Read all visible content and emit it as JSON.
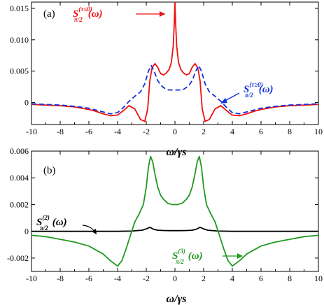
{
  "chart_data": [
    {
      "panel": "(a)",
      "type": "line",
      "xlabel": "ω/γs",
      "xlim": [
        -10,
        10
      ],
      "ylim": [
        -0.0035,
        0.016
      ],
      "xticks": [
        "-10",
        "-8",
        "-6",
        "-4",
        "-2",
        "0",
        "2",
        "4",
        "6",
        "8",
        "10"
      ],
      "yticks": [
        "0",
        "0.005",
        "0.010",
        "0.015"
      ],
      "series": [
        {
          "name": "S_{π/2}^{(τ≤0)}(ω)",
          "color": "#ee1111",
          "dash": "solid",
          "x": [
            -10,
            -9,
            -8,
            -7,
            -6,
            -5.5,
            -5,
            -4.5,
            -4,
            -3.6,
            -3.2,
            -2.8,
            -2.4,
            -2.1,
            -1.9,
            -1.75,
            -1.6,
            -1.4,
            -1.2,
            -1.0,
            -0.8,
            -0.6,
            -0.4,
            -0.25,
            -0.12,
            -0.05,
            0,
            0.05,
            0.12,
            0.25,
            0.4,
            0.6,
            0.8,
            1.0,
            1.2,
            1.4,
            1.6,
            1.75,
            1.9,
            2.1,
            2.4,
            2.8,
            3.2,
            3.6,
            4,
            4.5,
            5,
            5.5,
            6,
            7,
            8,
            9,
            10
          ],
          "y": [
            -0.0003,
            -0.0004,
            -0.0005,
            -0.0007,
            -0.0011,
            -0.0014,
            -0.0018,
            -0.0021,
            -0.002,
            -0.0013,
            -0.0005,
            -0.001,
            -0.0027,
            -0.003,
            -0.001,
            0.0035,
            0.0055,
            0.0062,
            0.0056,
            0.0046,
            0.0044,
            0.0047,
            0.0053,
            0.0064,
            0.009,
            0.0125,
            0.016,
            0.0125,
            0.009,
            0.0064,
            0.0053,
            0.0047,
            0.0044,
            0.0046,
            0.0056,
            0.0062,
            0.0055,
            0.0035,
            -0.001,
            -0.003,
            -0.0027,
            -0.001,
            -0.0005,
            -0.0013,
            -0.002,
            -0.0021,
            -0.0018,
            -0.0014,
            -0.0011,
            -0.0007,
            -0.0005,
            -0.0004,
            -0.0003
          ]
        },
        {
          "name": "S_{π/2}^{(τ≥0)}(ω)",
          "color": "#1133dd",
          "dash": "dashed",
          "x": [
            -10,
            -9,
            -8,
            -7,
            -6,
            -5.5,
            -5,
            -4.5,
            -4,
            -3.6,
            -3.2,
            -2.8,
            -2.4,
            -2.1,
            -1.85,
            -1.65,
            -1.45,
            -1.2,
            -1.0,
            -0.8,
            -0.6,
            -0.4,
            -0.2,
            0,
            0.2,
            0.4,
            0.6,
            0.8,
            1.0,
            1.2,
            1.45,
            1.65,
            1.85,
            2.1,
            2.4,
            2.8,
            3.2,
            3.6,
            4,
            4.5,
            5,
            5.5,
            6,
            7,
            8,
            9,
            10
          ],
          "y": [
            -0.0002,
            -0.0003,
            -0.0004,
            -0.0006,
            -0.0009,
            -0.0012,
            -0.0015,
            -0.0018,
            -0.0016,
            -0.0008,
            0.0002,
            0.001,
            0.0017,
            0.003,
            0.005,
            0.0059,
            0.005,
            0.0035,
            0.0028,
            0.0024,
            0.0021,
            0.002,
            0.002,
            0.002,
            0.002,
            0.002,
            0.0021,
            0.0024,
            0.0028,
            0.0035,
            0.005,
            0.0059,
            0.005,
            0.003,
            0.0017,
            0.001,
            0.0002,
            -0.0008,
            -0.0016,
            -0.0018,
            -0.0015,
            -0.0012,
            -0.0009,
            -0.0006,
            -0.0004,
            -0.0003,
            -0.0002
          ]
        }
      ]
    },
    {
      "panel": "(b)",
      "type": "line",
      "xlabel": "ω/γs",
      "xlim": [
        -10,
        10
      ],
      "ylim": [
        -0.003,
        0.006
      ],
      "xticks": [
        "-10",
        "-8",
        "-6",
        "-4",
        "-2",
        "0",
        "2",
        "4",
        "6",
        "8",
        "10"
      ],
      "yticks": [
        "-0.002",
        "0",
        "0.002",
        "0.004",
        "0.006"
      ],
      "series": [
        {
          "name": "S_{π/2}^{(2)}(ω)",
          "color": "#000000",
          "dash": "solid",
          "x": [
            -10,
            -6,
            -4,
            -3,
            -2.3,
            -2,
            -1.75,
            -1.5,
            -1.2,
            -0.8,
            -0.4,
            0,
            0.4,
            0.8,
            1.2,
            1.5,
            1.75,
            2,
            2.3,
            3,
            4,
            6,
            10
          ],
          "y": [
            0,
            0,
            0,
            2e-05,
            8e-05,
            0.00018,
            0.0003,
            0.00016,
            8e-05,
            6e-05,
            5e-05,
            5e-05,
            5e-05,
            6e-05,
            8e-05,
            0.00016,
            0.0003,
            0.00018,
            8e-05,
            2e-05,
            0,
            0,
            0
          ]
        },
        {
          "name": "S_{π/2}^{(3)}(ω)",
          "color": "#229922",
          "dash": "solid",
          "x": [
            -10,
            -9,
            -8,
            -7,
            -6,
            -5,
            -4.5,
            -4,
            -3.7,
            -3.4,
            -3.1,
            -2.8,
            -2.5,
            -2.2,
            -2.0,
            -1.85,
            -1.7,
            -1.55,
            -1.4,
            -1.2,
            -1.0,
            -0.8,
            -0.5,
            -0.2,
            0,
            0.2,
            0.5,
            0.8,
            1.0,
            1.2,
            1.4,
            1.55,
            1.7,
            1.85,
            2.0,
            2.2,
            2.5,
            2.8,
            3.1,
            3.4,
            3.7,
            4,
            4.5,
            5,
            6,
            7,
            8,
            9,
            10
          ],
          "y": [
            -0.0003,
            -0.0004,
            -0.0006,
            -0.0008,
            -0.0011,
            -0.0017,
            -0.0022,
            -0.0026,
            -0.0022,
            -0.0013,
            -0.0003,
            0.0007,
            0.0013,
            0.002,
            0.0033,
            0.0048,
            0.0056,
            0.0052,
            0.0043,
            0.0033,
            0.0027,
            0.0024,
            0.0021,
            0.002,
            0.002,
            0.002,
            0.0021,
            0.0024,
            0.0027,
            0.0033,
            0.0043,
            0.0052,
            0.0056,
            0.0048,
            0.0033,
            0.002,
            0.0013,
            0.0007,
            -0.0003,
            -0.0013,
            -0.0022,
            -0.0026,
            -0.0022,
            -0.0017,
            -0.0011,
            -0.0008,
            -0.0006,
            -0.0004,
            -0.0003
          ]
        }
      ]
    }
  ],
  "annotations": {
    "a_red_base": "S",
    "a_red_sub": "π/2",
    "a_red_sup": "(τ≤0)",
    "a_red_tail": "(ω)",
    "a_blue_base": "S",
    "a_blue_sub": "π/2",
    "a_blue_sup": "(τ≥0)",
    "a_blue_tail": "(ω)",
    "b_black_base": "S",
    "b_black_sub": "π/2",
    "b_black_sup": "(2)",
    "b_black_tail": "(ω)",
    "b_green_base": "S",
    "b_green_sub": "π/2",
    "b_green_sup": "(3)",
    "b_green_tail": "(ω)"
  },
  "colors": {
    "red": "#ee1111",
    "blue": "#1133dd",
    "black": "#000000",
    "green": "#229922"
  }
}
